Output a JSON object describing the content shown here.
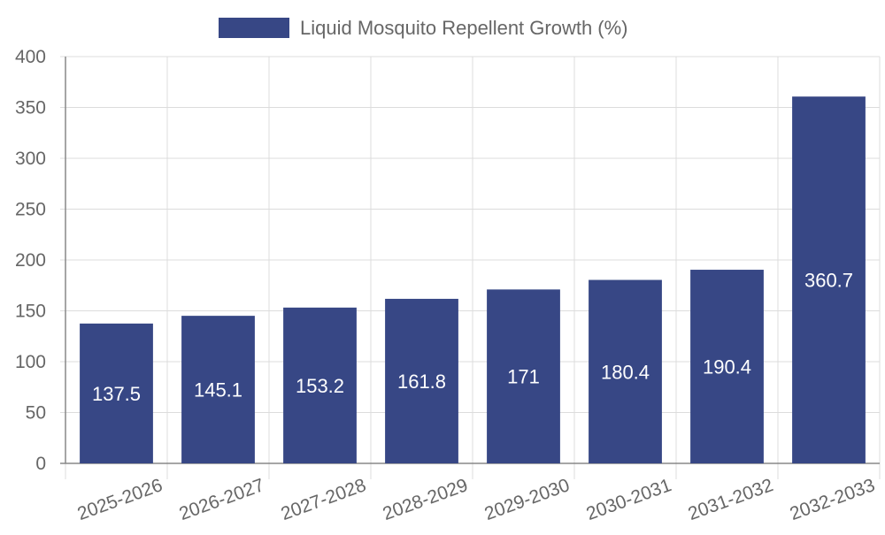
{
  "chart_data": {
    "type": "bar",
    "legend": {
      "label": "Liquid Mosquito Repellent Growth (%)",
      "position": "top-center"
    },
    "categories": [
      "2025-2026",
      "2026-2027",
      "2027-2028",
      "2028-2029",
      "2029-2030",
      "2030-2031",
      "2031-2032",
      "2032-2033"
    ],
    "series": [
      {
        "name": "Liquid Mosquito Repellent Growth (%)",
        "values": [
          137.5,
          145.1,
          153.2,
          161.8,
          171,
          180.4,
          190.4,
          360.7
        ],
        "data_labels": [
          "137.5",
          "145.1",
          "153.2",
          "161.8",
          "171",
          "180.4",
          "190.4",
          "360.7"
        ]
      }
    ],
    "y_ticks": [
      "0",
      "50",
      "100",
      "150",
      "200",
      "250",
      "300",
      "350",
      "400"
    ],
    "ylim": [
      0,
      400
    ],
    "grid": true,
    "colors": {
      "bar": "#374785",
      "grid": "#dcdcdc",
      "axis": "#888888",
      "tick_text": "#666666",
      "label_text": "#ffffff"
    }
  }
}
